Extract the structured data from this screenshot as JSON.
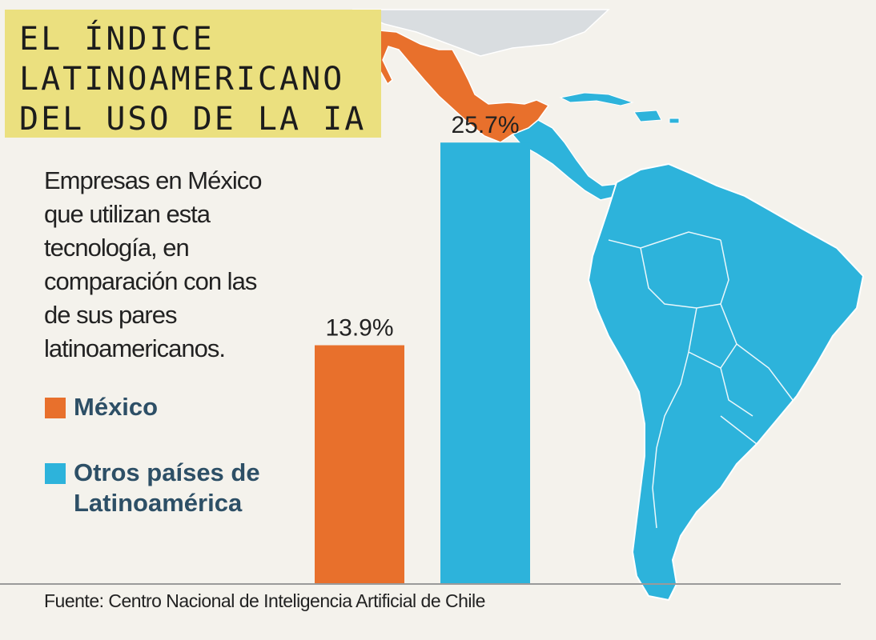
{
  "title": {
    "line1": "EL ÍNDICE",
    "line2": "LATINOAMERICANO",
    "line3": "DEL USO DE LA IA"
  },
  "description": "Empresas en México que utilizan esta tecnología, en comparación con las de sus pares latinoamericanos.",
  "legend": {
    "mexico": "México",
    "others": "Otros países de Latinoamérica"
  },
  "source": "Fuente: Centro Nacional de Inteligencia Artificial de Chile",
  "colors": {
    "mexico": "#e8702c",
    "others": "#2db3db",
    "title_bg": "#ebe07f",
    "legend_text": "#2d4f66"
  },
  "chart_data": {
    "type": "bar",
    "title": "EL ÍNDICE LATINOAMERICANO DEL USO DE LA IA",
    "categories": [
      "México",
      "Otros países de Latinoamérica"
    ],
    "values": [
      13.9,
      25.7
    ],
    "labels": [
      "13.9%",
      "25.7%"
    ],
    "unit": "%",
    "ylim": [
      0,
      34
    ],
    "xlabel": "",
    "ylabel": "",
    "grid": false
  }
}
